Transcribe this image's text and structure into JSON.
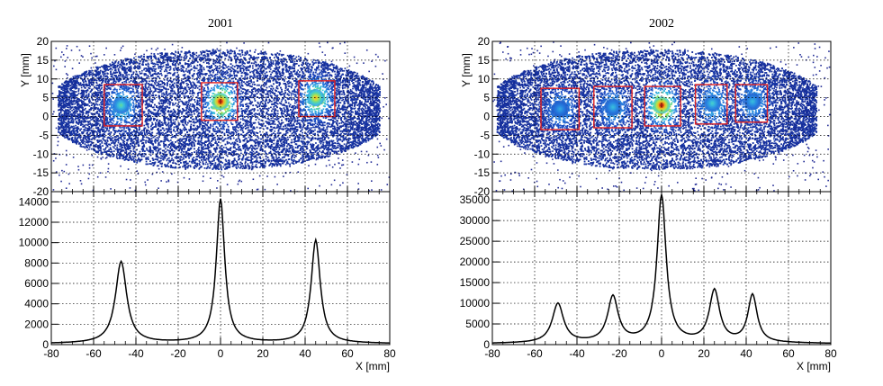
{
  "chart_data": [
    {
      "title": "2001",
      "type": "heatmap+line",
      "heatmap": {
        "type": "heatmap",
        "xlabel": "X [mm]",
        "ylabel": "Y [mm]",
        "xlim": [
          -80,
          80
        ],
        "ylim": [
          -20,
          20
        ],
        "yticks": [
          -20,
          -15,
          -10,
          -5,
          0,
          5,
          10,
          15,
          20
        ],
        "spots": [
          {
            "x": -47,
            "y": 3,
            "intensity": 0.55
          },
          {
            "x": 0,
            "y": 4,
            "intensity": 1.0
          },
          {
            "x": 45,
            "y": 5,
            "intensity": 0.8
          }
        ],
        "boxes": [
          {
            "x0": -55,
            "x1": -37,
            "y0": -2.5,
            "y1": 8.5
          },
          {
            "x0": -9,
            "x1": 8,
            "y0": -1,
            "y1": 9
          },
          {
            "x0": 37,
            "x1": 54,
            "y0": 0,
            "y1": 9.5
          }
        ]
      },
      "projection": {
        "type": "line",
        "xlabel": "X [mm]",
        "ylabel": "",
        "xlim": [
          -80,
          80
        ],
        "ylim": [
          0,
          15000
        ],
        "xticks": [
          -80,
          -60,
          -40,
          -20,
          0,
          20,
          40,
          60,
          80
        ],
        "yticks": [
          0,
          2000,
          4000,
          6000,
          8000,
          10000,
          12000,
          14000
        ],
        "baseline": 150,
        "peaks": [
          {
            "x": -47,
            "height": 8000,
            "width": 3.2
          },
          {
            "x": 0,
            "height": 14100,
            "width": 2.4
          },
          {
            "x": 45,
            "height": 10100,
            "width": 2.6
          }
        ]
      }
    },
    {
      "title": "2002",
      "type": "heatmap+line",
      "heatmap": {
        "type": "heatmap",
        "xlabel": "X [mm]",
        "ylabel": "Y [mm]",
        "xlim": [
          -80,
          80
        ],
        "ylim": [
          -20,
          20
        ],
        "yticks": [
          -20,
          -15,
          -10,
          -5,
          0,
          5,
          10,
          15,
          20
        ],
        "spots": [
          {
            "x": -48,
            "y": 2,
            "intensity": 0.4
          },
          {
            "x": -23,
            "y": 2.5,
            "intensity": 0.45
          },
          {
            "x": 0,
            "y": 3,
            "intensity": 1.0
          },
          {
            "x": 24,
            "y": 3.5,
            "intensity": 0.5
          },
          {
            "x": 43,
            "y": 4,
            "intensity": 0.45
          }
        ],
        "boxes": [
          {
            "x0": -57,
            "x1": -39,
            "y0": -3.5,
            "y1": 7.5
          },
          {
            "x0": -32,
            "x1": -14,
            "y0": -3,
            "y1": 8
          },
          {
            "x0": -8,
            "x1": 9,
            "y0": -2.5,
            "y1": 8
          },
          {
            "x0": 16,
            "x1": 31,
            "y0": -2,
            "y1": 8.5
          },
          {
            "x0": 35,
            "x1": 50,
            "y0": -1.5,
            "y1": 8.5
          }
        ]
      },
      "projection": {
        "type": "line",
        "xlabel": "X [mm]",
        "ylabel": "",
        "xlim": [
          -80,
          80
        ],
        "ylim": [
          0,
          37000
        ],
        "xticks": [
          -80,
          -60,
          -40,
          -20,
          0,
          20,
          40,
          60,
          80
        ],
        "yticks": [
          0,
          5000,
          10000,
          15000,
          20000,
          25000,
          30000,
          35000
        ],
        "baseline": 400,
        "peaks": [
          {
            "x": -49,
            "height": 9500,
            "width": 3.2
          },
          {
            "x": -23,
            "height": 11000,
            "width": 3.0
          },
          {
            "x": 0,
            "height": 35500,
            "width": 2.6
          },
          {
            "x": 25,
            "height": 12500,
            "width": 2.9
          },
          {
            "x": 43,
            "height": 11500,
            "width": 2.6
          }
        ]
      }
    }
  ]
}
